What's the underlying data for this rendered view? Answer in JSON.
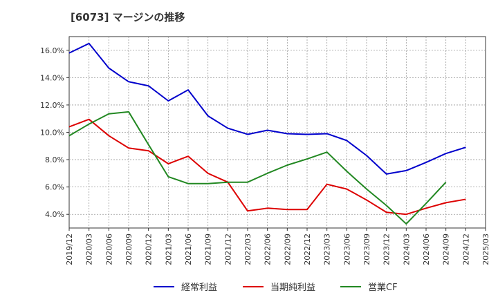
{
  "chart_data": {
    "type": "line",
    "title": "[6073]  マージンの推移",
    "xlabel": "",
    "ylabel": "",
    "ylim": [
      0.03,
      0.17
    ],
    "yticks": [
      0.04,
      0.06,
      0.08,
      0.1,
      0.12,
      0.14,
      0.16
    ],
    "ytick_labels": [
      "4.0%",
      "6.0%",
      "8.0%",
      "10.0%",
      "12.0%",
      "14.0%",
      "16.0%"
    ],
    "categories": [
      "2019/12",
      "2020/03",
      "2020/06",
      "2020/09",
      "2020/12",
      "2021/03",
      "2021/06",
      "2021/09",
      "2021/12",
      "2022/03",
      "2022/06",
      "2022/09",
      "2022/12",
      "2023/03",
      "2023/06",
      "2023/09",
      "2023/12",
      "2024/03",
      "2024/06",
      "2024/09",
      "2024/12",
      "2025/03"
    ],
    "grid": true,
    "legend_position": "bottom",
    "series": [
      {
        "name": "経常利益",
        "color": "#0000cc",
        "values": [
          0.158,
          0.165,
          0.147,
          0.137,
          0.134,
          0.123,
          0.131,
          0.112,
          0.103,
          0.0985,
          0.1015,
          0.099,
          0.0985,
          0.099,
          0.094,
          0.083,
          0.0695,
          0.072,
          0.078,
          0.0845,
          0.089,
          null
        ]
      },
      {
        "name": "当期純利益",
        "color": "#dd0000",
        "values": [
          0.104,
          0.1095,
          0.0975,
          0.0885,
          0.0865,
          0.077,
          0.0825,
          0.07,
          0.0635,
          0.0425,
          0.0445,
          0.0435,
          0.0435,
          0.062,
          0.0585,
          0.0505,
          0.0415,
          0.04,
          0.0445,
          0.0485,
          0.051,
          null
        ]
      },
      {
        "name": "営業CF",
        "color": "#228822",
        "values": [
          0.0975,
          0.106,
          0.1135,
          0.115,
          0.091,
          0.0675,
          0.0625,
          0.0625,
          0.0635,
          0.0635,
          0.07,
          0.076,
          0.0805,
          0.0855,
          0.0715,
          0.0585,
          0.0465,
          0.033,
          0.048,
          0.0635,
          null,
          null
        ]
      }
    ]
  }
}
